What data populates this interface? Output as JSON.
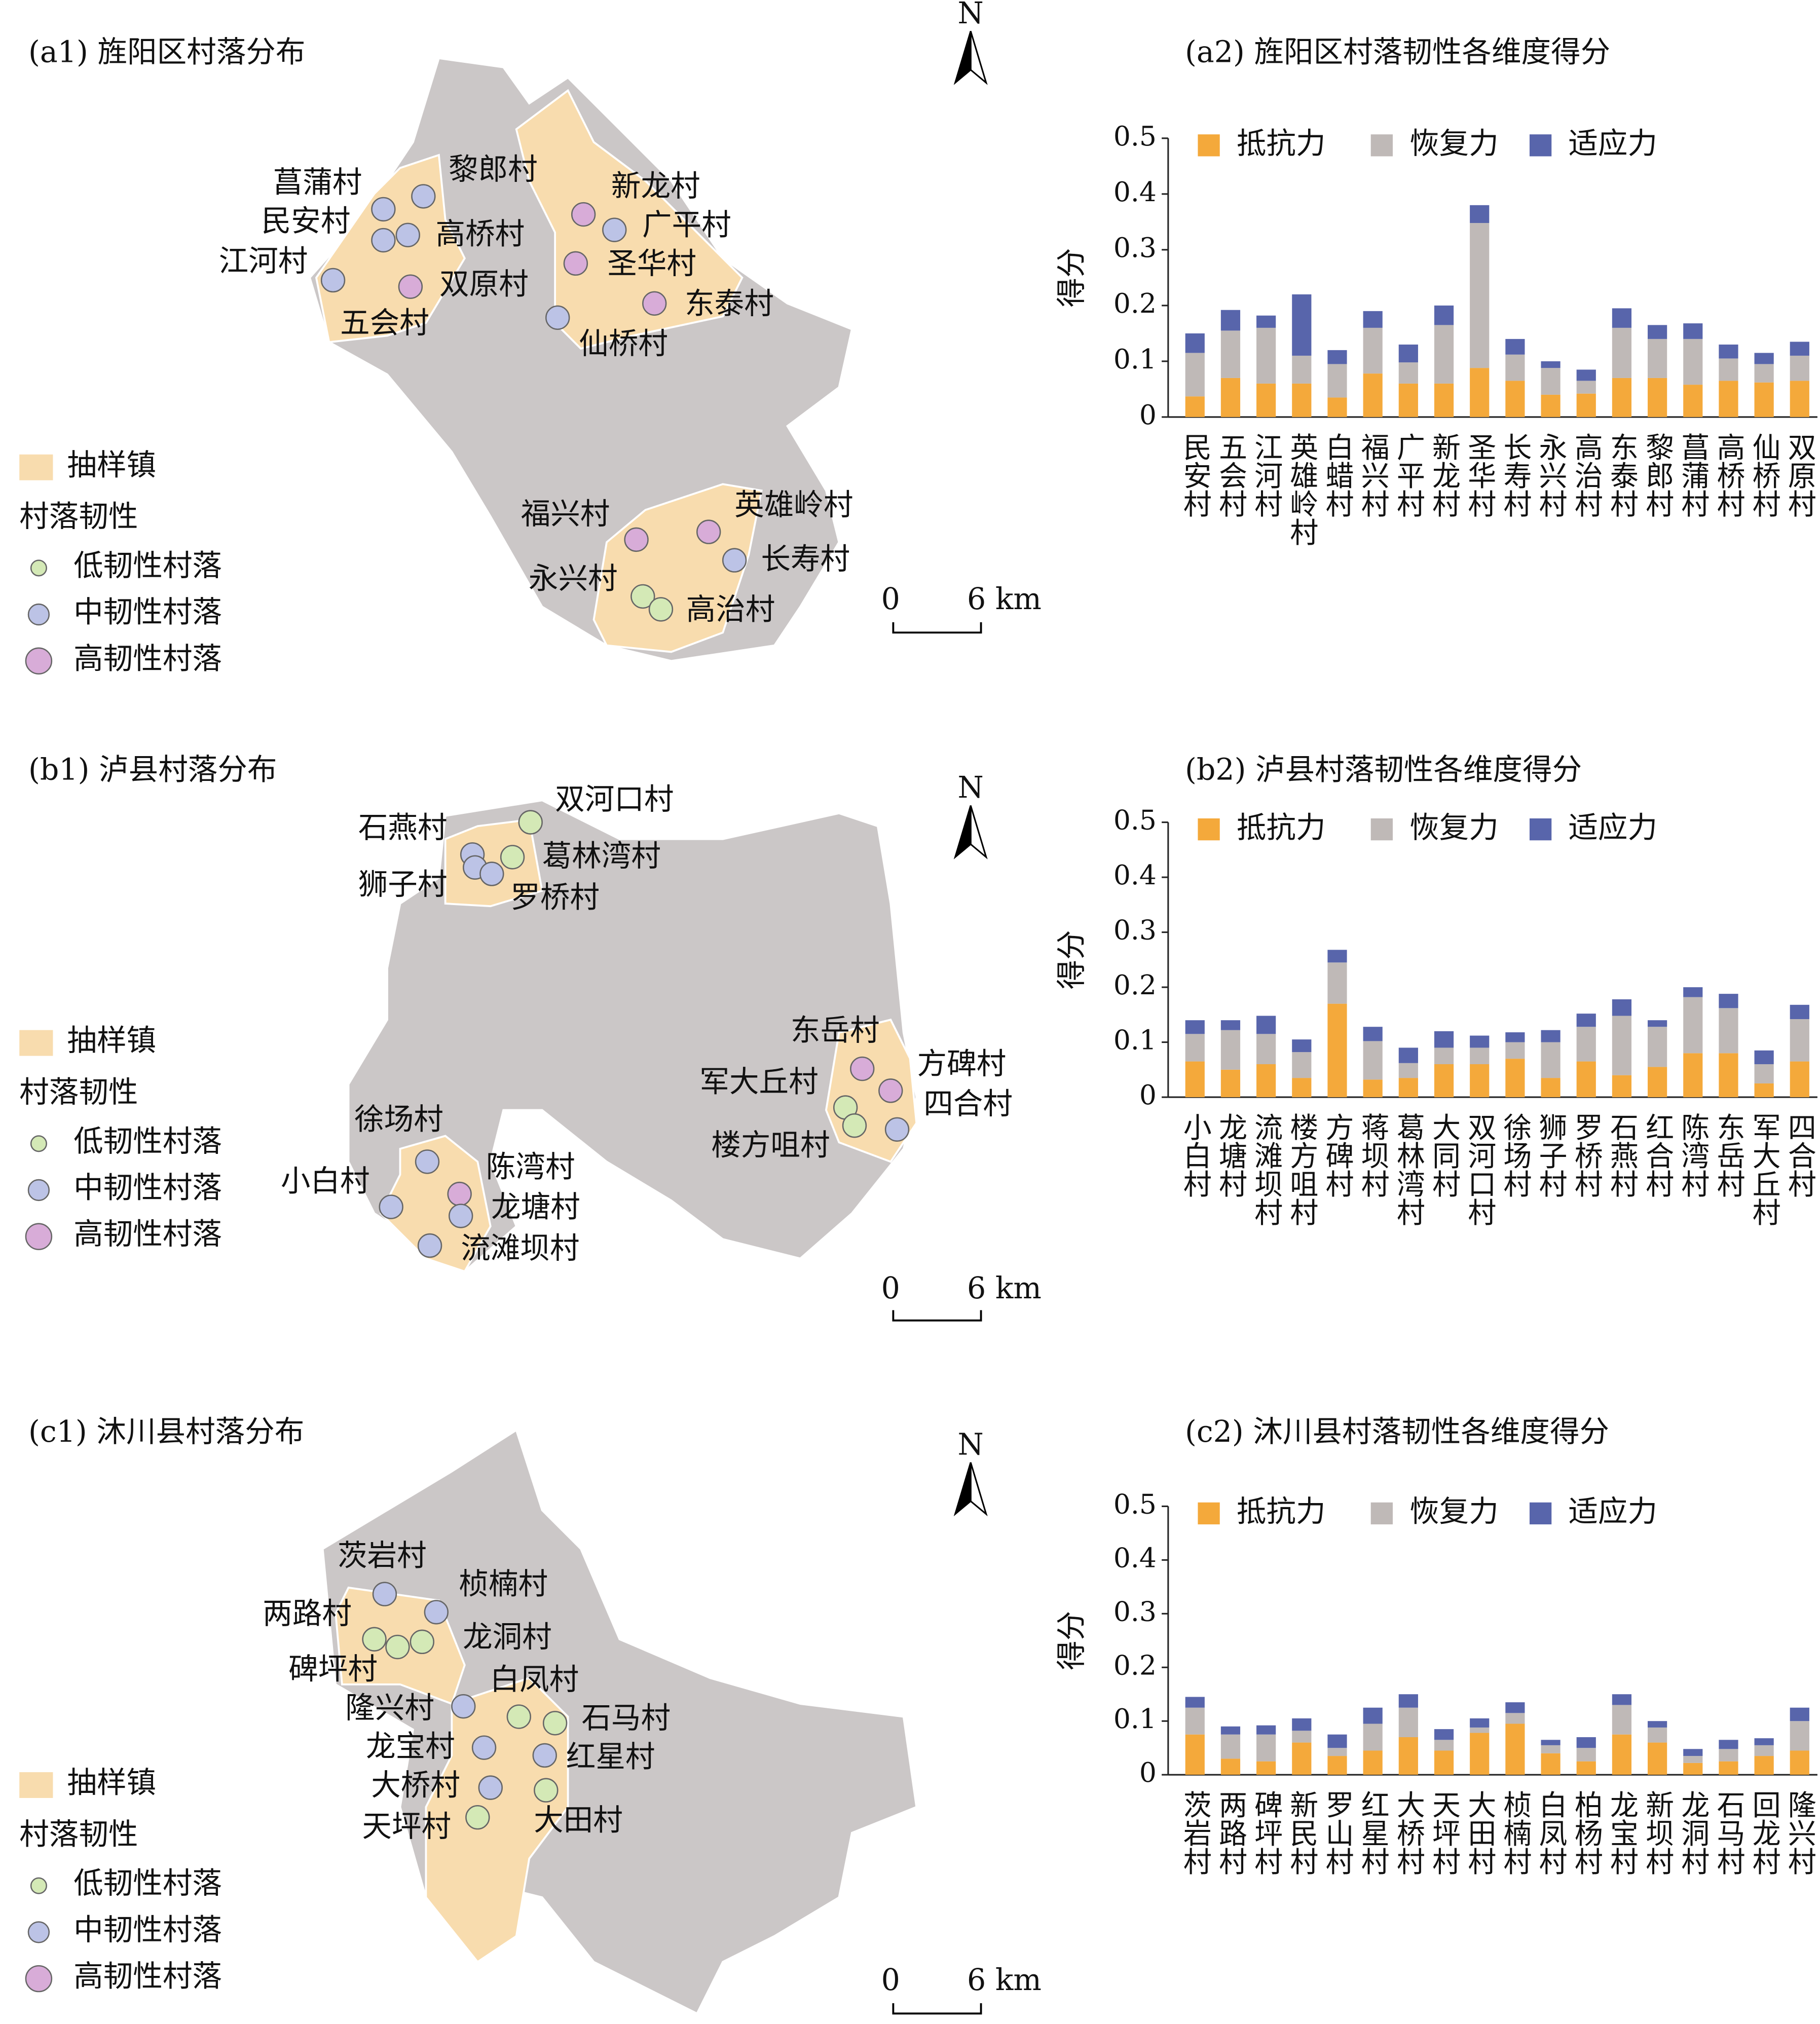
{
  "maps": [
    {
      "title": "(a1) 旌阳区村落分布",
      "legend": {
        "town": "抽样镇",
        "heading": "村落韧性",
        "classes": [
          {
            "name": "低韧性村落",
            "color": "#d4e9b6"
          },
          {
            "name": "中韧性村落",
            "color": "#bcc3e6"
          },
          {
            "name": "高韧性村落",
            "color": "#d8acd8"
          }
        ]
      },
      "villages": [
        {
          "name": "菖蒲村",
          "color": "#bcc3e6"
        },
        {
          "name": "黎郎村",
          "color": "#bcc3e6"
        },
        {
          "name": "民安村",
          "color": "#bcc3e6"
        },
        {
          "name": "高桥村",
          "color": "#bcc3e6"
        },
        {
          "name": "江河村",
          "color": "#bcc3e6"
        },
        {
          "name": "双原村",
          "color": "#d8acd8"
        },
        {
          "name": "五会村"
        },
        {
          "name": "新龙村",
          "color": "#d8acd8"
        },
        {
          "name": "广平村",
          "color": "#bcc3e6"
        },
        {
          "name": "圣华村",
          "color": "#d8acd8"
        },
        {
          "name": "东泰村",
          "color": "#d8acd8"
        },
        {
          "name": "仙桥村",
          "color": "#bcc3e6"
        },
        {
          "name": "福兴村",
          "color": "#d8acd8"
        },
        {
          "name": "英雄岭村",
          "color": "#d8acd8"
        },
        {
          "name": "长寿村",
          "color": "#bcc3e6"
        },
        {
          "name": "永兴村",
          "color": "#d4e9b6"
        },
        {
          "name": "高治村",
          "color": "#d4e9b6"
        }
      ],
      "scale": [
        "0",
        "6 km"
      ],
      "north": "N"
    },
    {
      "title": "(b1) 泸县村落分布",
      "legend": {
        "town": "抽样镇",
        "heading": "村落韧性",
        "classes": [
          {
            "name": "低韧性村落",
            "color": "#d4e9b6"
          },
          {
            "name": "中韧性村落",
            "color": "#bcc3e6"
          },
          {
            "name": "高韧性村落",
            "color": "#d8acd8"
          }
        ]
      },
      "villages": [
        {
          "name": "双河口村",
          "color": "#d4e9b6"
        },
        {
          "name": "石燕村",
          "color": "#bcc3e6"
        },
        {
          "name": "葛林湾村",
          "color": "#d4e9b6"
        },
        {
          "name": "狮子村",
          "color": "#bcc3e6"
        },
        {
          "name": "罗桥村",
          "color": "#bcc3e6"
        },
        {
          "name": "东岳村",
          "color": "#d8acd8"
        },
        {
          "name": "方碑村",
          "color": "#d8acd8"
        },
        {
          "name": "四合村",
          "color": "#bcc3e6"
        },
        {
          "name": "军大丘村",
          "color": "#d4e9b6"
        },
        {
          "name": "楼方咀村",
          "color": "#d4e9b6"
        },
        {
          "name": "徐场村",
          "color": "#bcc3e6"
        },
        {
          "name": "陈湾村",
          "color": "#d8acd8"
        },
        {
          "name": "小白村",
          "color": "#bcc3e6"
        },
        {
          "name": "龙塘村",
          "color": "#bcc3e6"
        },
        {
          "name": "流滩坝村",
          "color": "#bcc3e6"
        }
      ],
      "scale": [
        "0",
        "6 km"
      ],
      "north": "N"
    },
    {
      "title": "(c1) 沐川县村落分布",
      "legend": {
        "town": "抽样镇",
        "heading": "村落韧性",
        "classes": [
          {
            "name": "低韧性村落",
            "color": "#d4e9b6"
          },
          {
            "name": "中韧性村落",
            "color": "#bcc3e6"
          },
          {
            "name": "高韧性村落",
            "color": "#d8acd8"
          }
        ]
      },
      "villages": [
        {
          "name": "茨岩村",
          "color": "#bcc3e6"
        },
        {
          "name": "桢楠村",
          "color": "#bcc3e6"
        },
        {
          "name": "两路村",
          "color": "#d4e9b6"
        },
        {
          "name": "龙洞村",
          "color": "#d4e9b6"
        },
        {
          "name": "碑坪村",
          "color": "#d4e9b6"
        },
        {
          "name": "隆兴村",
          "color": "#bcc3e6"
        },
        {
          "name": "白凤村",
          "color": "#d4e9b6"
        },
        {
          "name": "石马村",
          "color": "#d4e9b6"
        },
        {
          "name": "龙宝村",
          "color": "#bcc3e6"
        },
        {
          "name": "红星村",
          "color": "#bcc3e6"
        },
        {
          "name": "大桥村",
          "color": "#bcc3e6"
        },
        {
          "name": "大田村",
          "color": "#d4e9b6"
        },
        {
          "name": "天坪村",
          "color": "#d4e9b6"
        }
      ],
      "scale": [
        "0",
        "6 km"
      ],
      "north": "N"
    }
  ],
  "chart_data": [
    {
      "type": "bar",
      "stacked": true,
      "title": "(a2) 旌阳区村落韧性各维度得分",
      "ylabel": "得分",
      "categories": [
        "民安村",
        "五会村",
        "江河村",
        "英雄岭村",
        "白蜡村",
        "福兴村",
        "广平村",
        "新龙村",
        "圣华村",
        "长寿村",
        "永兴村",
        "高治村",
        "东泰村",
        "黎郎村",
        "菖蒲村",
        "高桥村",
        "仙桥村",
        "双原村"
      ],
      "series": [
        {
          "name": "抵抗力",
          "color": "#f4a93b",
          "values": [
            0.037,
            0.07,
            0.06,
            0.06,
            0.035,
            0.078,
            0.06,
            0.06,
            0.088,
            0.065,
            0.04,
            0.042,
            0.07,
            0.07,
            0.058,
            0.065,
            0.062,
            0.065
          ]
        },
        {
          "name": "恢复力",
          "color": "#bfb9b7",
          "values": [
            0.078,
            0.085,
            0.1,
            0.05,
            0.06,
            0.082,
            0.038,
            0.105,
            0.26,
            0.047,
            0.048,
            0.023,
            0.09,
            0.07,
            0.082,
            0.04,
            0.033,
            0.045
          ]
        },
        {
          "name": "适应力",
          "color": "#5865ab",
          "values": [
            0.035,
            0.037,
            0.022,
            0.11,
            0.025,
            0.03,
            0.032,
            0.035,
            0.032,
            0.028,
            0.012,
            0.02,
            0.035,
            0.025,
            0.028,
            0.025,
            0.02,
            0.025
          ]
        }
      ],
      "ylim": [
        0,
        0.5
      ],
      "yticks": [
        0,
        0.1,
        0.2,
        0.3,
        0.4,
        0.5
      ]
    },
    {
      "type": "bar",
      "stacked": true,
      "title": "(b2) 泸县村落韧性各维度得分",
      "ylabel": "得分",
      "categories": [
        "小白村",
        "龙塘村",
        "流滩坝村",
        "楼方咀村",
        "方碑村",
        "蒋坝村",
        "葛林湾村",
        "大同村",
        "双河口村",
        "徐场村",
        "狮子村",
        "罗桥村",
        "石燕村",
        "红合村",
        "陈湾村",
        "东岳村",
        "军大丘村",
        "四合村"
      ],
      "series": [
        {
          "name": "抵抗力",
          "color": "#f4a93b",
          "values": [
            0.065,
            0.05,
            0.06,
            0.035,
            0.17,
            0.032,
            0.035,
            0.06,
            0.06,
            0.07,
            0.035,
            0.065,
            0.04,
            0.055,
            0.08,
            0.08,
            0.025,
            0.065
          ]
        },
        {
          "name": "恢复力",
          "color": "#bfb9b7",
          "values": [
            0.05,
            0.072,
            0.055,
            0.047,
            0.075,
            0.07,
            0.027,
            0.03,
            0.03,
            0.03,
            0.065,
            0.063,
            0.108,
            0.073,
            0.102,
            0.082,
            0.035,
            0.077
          ]
        },
        {
          "name": "适应力",
          "color": "#5865ab",
          "values": [
            0.025,
            0.018,
            0.033,
            0.023,
            0.023,
            0.026,
            0.028,
            0.03,
            0.022,
            0.018,
            0.022,
            0.024,
            0.03,
            0.012,
            0.018,
            0.026,
            0.025,
            0.026
          ]
        }
      ],
      "ylim": [
        0,
        0.5
      ],
      "yticks": [
        0,
        0.1,
        0.2,
        0.3,
        0.4,
        0.5
      ]
    },
    {
      "type": "bar",
      "stacked": true,
      "title": "(c2) 沐川县村落韧性各维度得分",
      "ylabel": "得分",
      "categories": [
        "茨岩村",
        "两路村",
        "碑坪村",
        "新民村",
        "罗山村",
        "红星村",
        "大桥村",
        "天坪村",
        "大田村",
        "桢楠村",
        "白凤村",
        "柏杨村",
        "龙宝村",
        "新坝村",
        "龙洞村",
        "石马村",
        "回龙村",
        "隆兴村"
      ],
      "series": [
        {
          "name": "抵抗力",
          "color": "#f4a93b",
          "values": [
            0.075,
            0.03,
            0.025,
            0.06,
            0.035,
            0.045,
            0.07,
            0.045,
            0.078,
            0.095,
            0.04,
            0.025,
            0.075,
            0.06,
            0.022,
            0.025,
            0.035,
            0.045
          ]
        },
        {
          "name": "恢复力",
          "color": "#bfb9b7",
          "values": [
            0.05,
            0.045,
            0.05,
            0.022,
            0.015,
            0.05,
            0.055,
            0.02,
            0.01,
            0.02,
            0.015,
            0.025,
            0.055,
            0.028,
            0.013,
            0.023,
            0.02,
            0.055
          ]
        },
        {
          "name": "适应力",
          "color": "#5865ab",
          "values": [
            0.02,
            0.015,
            0.017,
            0.023,
            0.025,
            0.03,
            0.025,
            0.02,
            0.017,
            0.02,
            0.01,
            0.02,
            0.02,
            0.012,
            0.013,
            0.017,
            0.013,
            0.025
          ]
        }
      ],
      "ylim": [
        0,
        0.5
      ],
      "yticks": [
        0,
        0.1,
        0.2,
        0.3,
        0.4,
        0.5
      ]
    }
  ]
}
